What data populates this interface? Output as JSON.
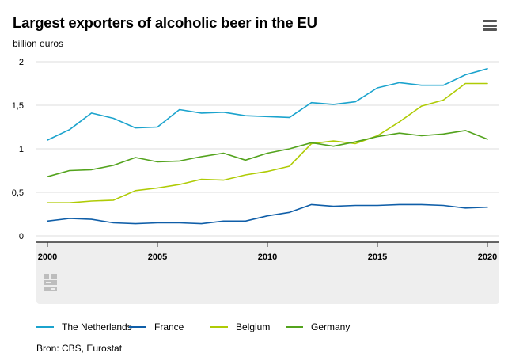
{
  "header": {
    "title": "Largest exporters of alcoholic beer in the EU",
    "unit": "billion euros",
    "menu_icon": "hamburger-menu-icon"
  },
  "colors": {
    "netherlands": "#1ba3cd",
    "france": "#0f5ea8",
    "belgium": "#afcb05",
    "germany": "#53a31d",
    "grid": "#dddddd",
    "footer_band": "#eeeeee"
  },
  "chart_data": {
    "type": "line",
    "x": [
      2000,
      2001,
      2002,
      2003,
      2004,
      2005,
      2006,
      2007,
      2008,
      2009,
      2010,
      2011,
      2012,
      2013,
      2014,
      2015,
      2016,
      2017,
      2018,
      2019,
      2020
    ],
    "series": [
      {
        "name": "The Netherlands",
        "values": [
          1.1,
          1.22,
          1.41,
          1.35,
          1.24,
          1.25,
          1.45,
          1.41,
          1.42,
          1.38,
          1.37,
          1.36,
          1.53,
          1.51,
          1.54,
          1.7,
          1.76,
          1.73,
          1.73,
          1.85,
          1.92
        ]
      },
      {
        "name": "France",
        "values": [
          0.17,
          0.2,
          0.19,
          0.15,
          0.14,
          0.15,
          0.15,
          0.14,
          0.17,
          0.17,
          0.23,
          0.27,
          0.36,
          0.34,
          0.35,
          0.35,
          0.36,
          0.36,
          0.35,
          0.32,
          0.33
        ]
      },
      {
        "name": "Belgium",
        "values": [
          0.38,
          0.38,
          0.4,
          0.41,
          0.52,
          0.55,
          0.59,
          0.65,
          0.64,
          0.7,
          0.74,
          0.8,
          1.06,
          1.09,
          1.06,
          1.15,
          1.31,
          1.49,
          1.56,
          1.75,
          1.75
        ]
      },
      {
        "name": "Germany",
        "values": [
          0.68,
          0.75,
          0.76,
          0.81,
          0.9,
          0.85,
          0.86,
          0.91,
          0.95,
          0.87,
          0.95,
          1.0,
          1.07,
          1.03,
          1.08,
          1.14,
          1.18,
          1.15,
          1.17,
          1.21,
          1.11
        ]
      }
    ],
    "y_ticks": [
      "0",
      "0,5",
      "1",
      "1,5",
      "2"
    ],
    "x_ticks": [
      "2000",
      "2005",
      "2010",
      "2015",
      "2020"
    ],
    "ylim": [
      0,
      2
    ],
    "grid": true,
    "legend_position": "bottom"
  },
  "legend": [
    "The Netherlands",
    "France",
    "Belgium",
    "Germany"
  ],
  "source": "Bron: CBS, Eurostat",
  "logo_icon": "cbs-logo-icon"
}
